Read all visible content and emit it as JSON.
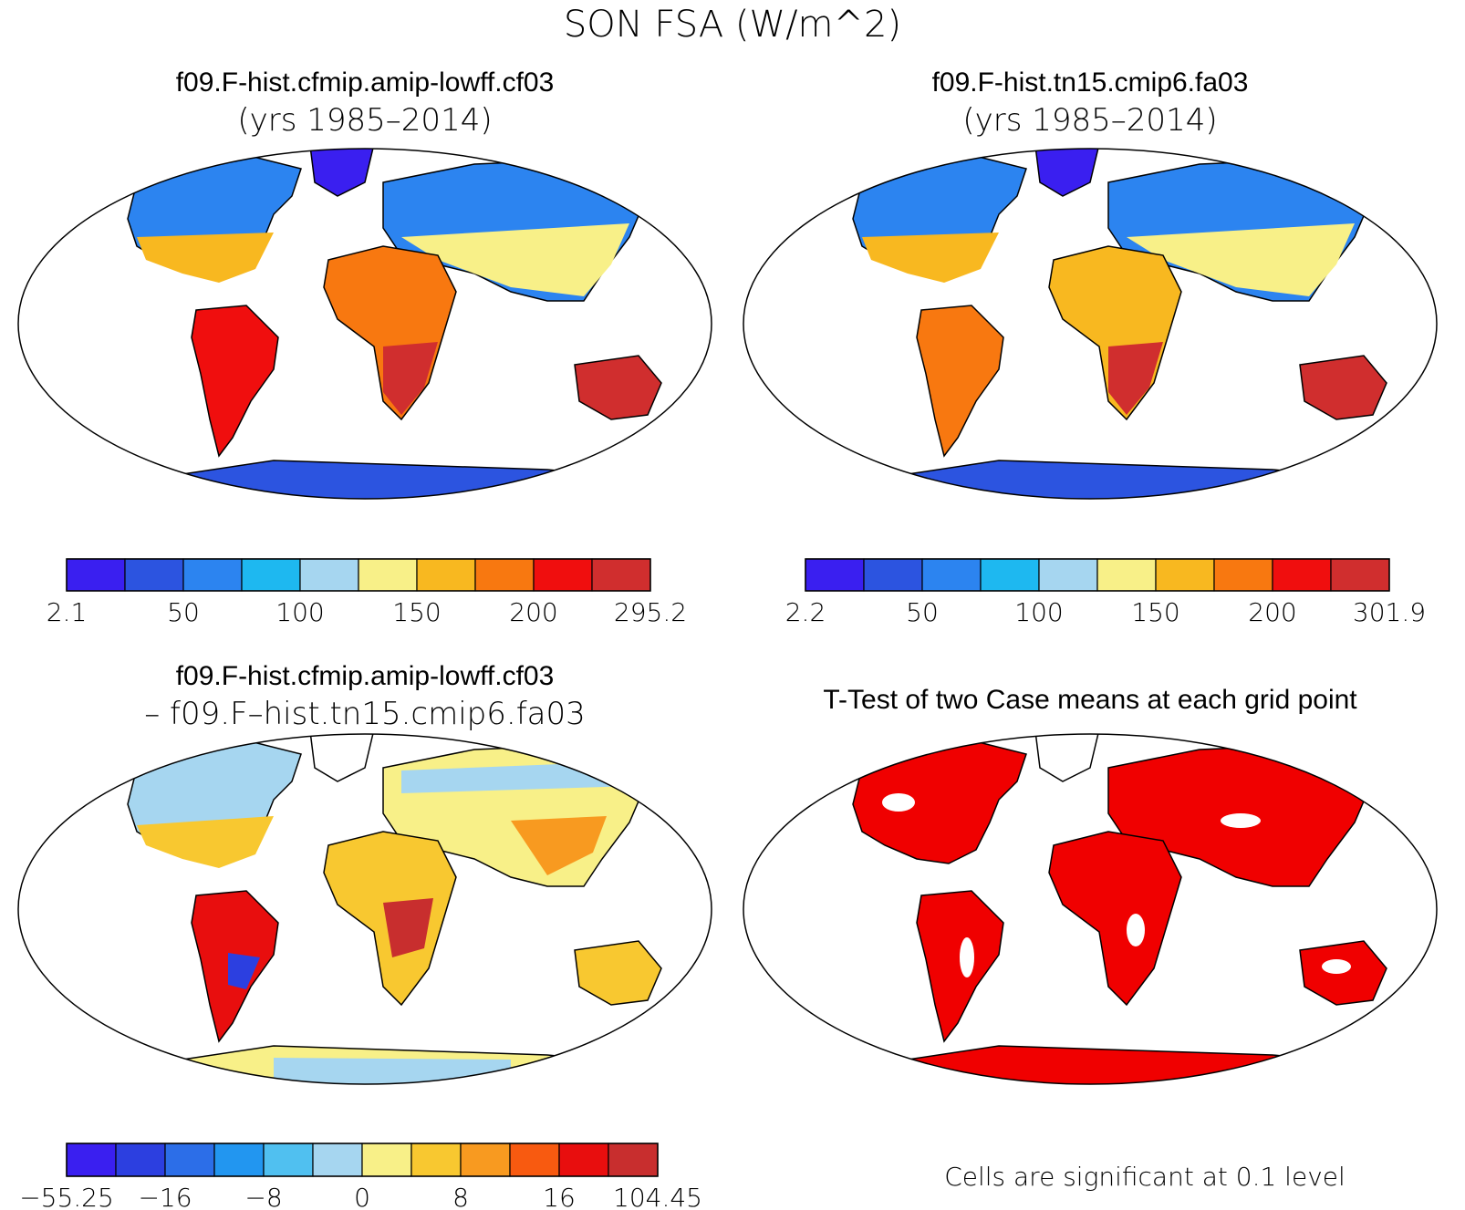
{
  "figure": {
    "title": "SON FSA (W/m^2)"
  },
  "colors": {
    "abs_levels": [
      "#3a1ff0",
      "#2c54e0",
      "#2c84f0",
      "#1eb8f0",
      "#a6d6f0",
      "#f8f088",
      "#f8b820",
      "#f87810",
      "#f00e0e",
      "#d02e2e"
    ],
    "diff_levels": [
      "#3a1ff0",
      "#2c3fe0",
      "#2c6ee8",
      "#2296f0",
      "#50c0f0",
      "#a6d6f0",
      "#f8f088",
      "#f8c830",
      "#f89a20",
      "#f85a10",
      "#e80e0e",
      "#c82e2e"
    ],
    "significance": "#f00000",
    "ocean": "#ffffff",
    "coast": "#000000"
  },
  "panels": [
    {
      "id": "case1",
      "title_line1": "f09.F-hist.cfmip.amip-lowff.cf03",
      "title_line2": "(yrs 1985–2014)",
      "colorbar": {
        "min_label": "2.1",
        "max_label": "295.2",
        "tick_labels": [
          "50",
          "100",
          "150",
          "200"
        ]
      }
    },
    {
      "id": "case2",
      "title_line1": "f09.F-hist.tn15.cmip6.fa03",
      "title_line2": "(yrs 1985–2014)",
      "colorbar": {
        "min_label": "2.2",
        "max_label": "301.9",
        "tick_labels": [
          "50",
          "100",
          "150",
          "200"
        ]
      }
    },
    {
      "id": "diff",
      "title_line1": "f09.F-hist.cfmip.amip-lowff.cf03",
      "title_line2": "– f09.F–hist.tn15.cmip6.fa03",
      "colorbar": {
        "min_label": "−55.25",
        "max_label": "104.45",
        "tick_labels": [
          "−16",
          "−8",
          "0",
          "8",
          "16"
        ]
      }
    },
    {
      "id": "ttest",
      "title_line1": "T-Test of two Case means at each grid point",
      "footnote": "Cells are significant at 0.1 level"
    }
  ]
}
